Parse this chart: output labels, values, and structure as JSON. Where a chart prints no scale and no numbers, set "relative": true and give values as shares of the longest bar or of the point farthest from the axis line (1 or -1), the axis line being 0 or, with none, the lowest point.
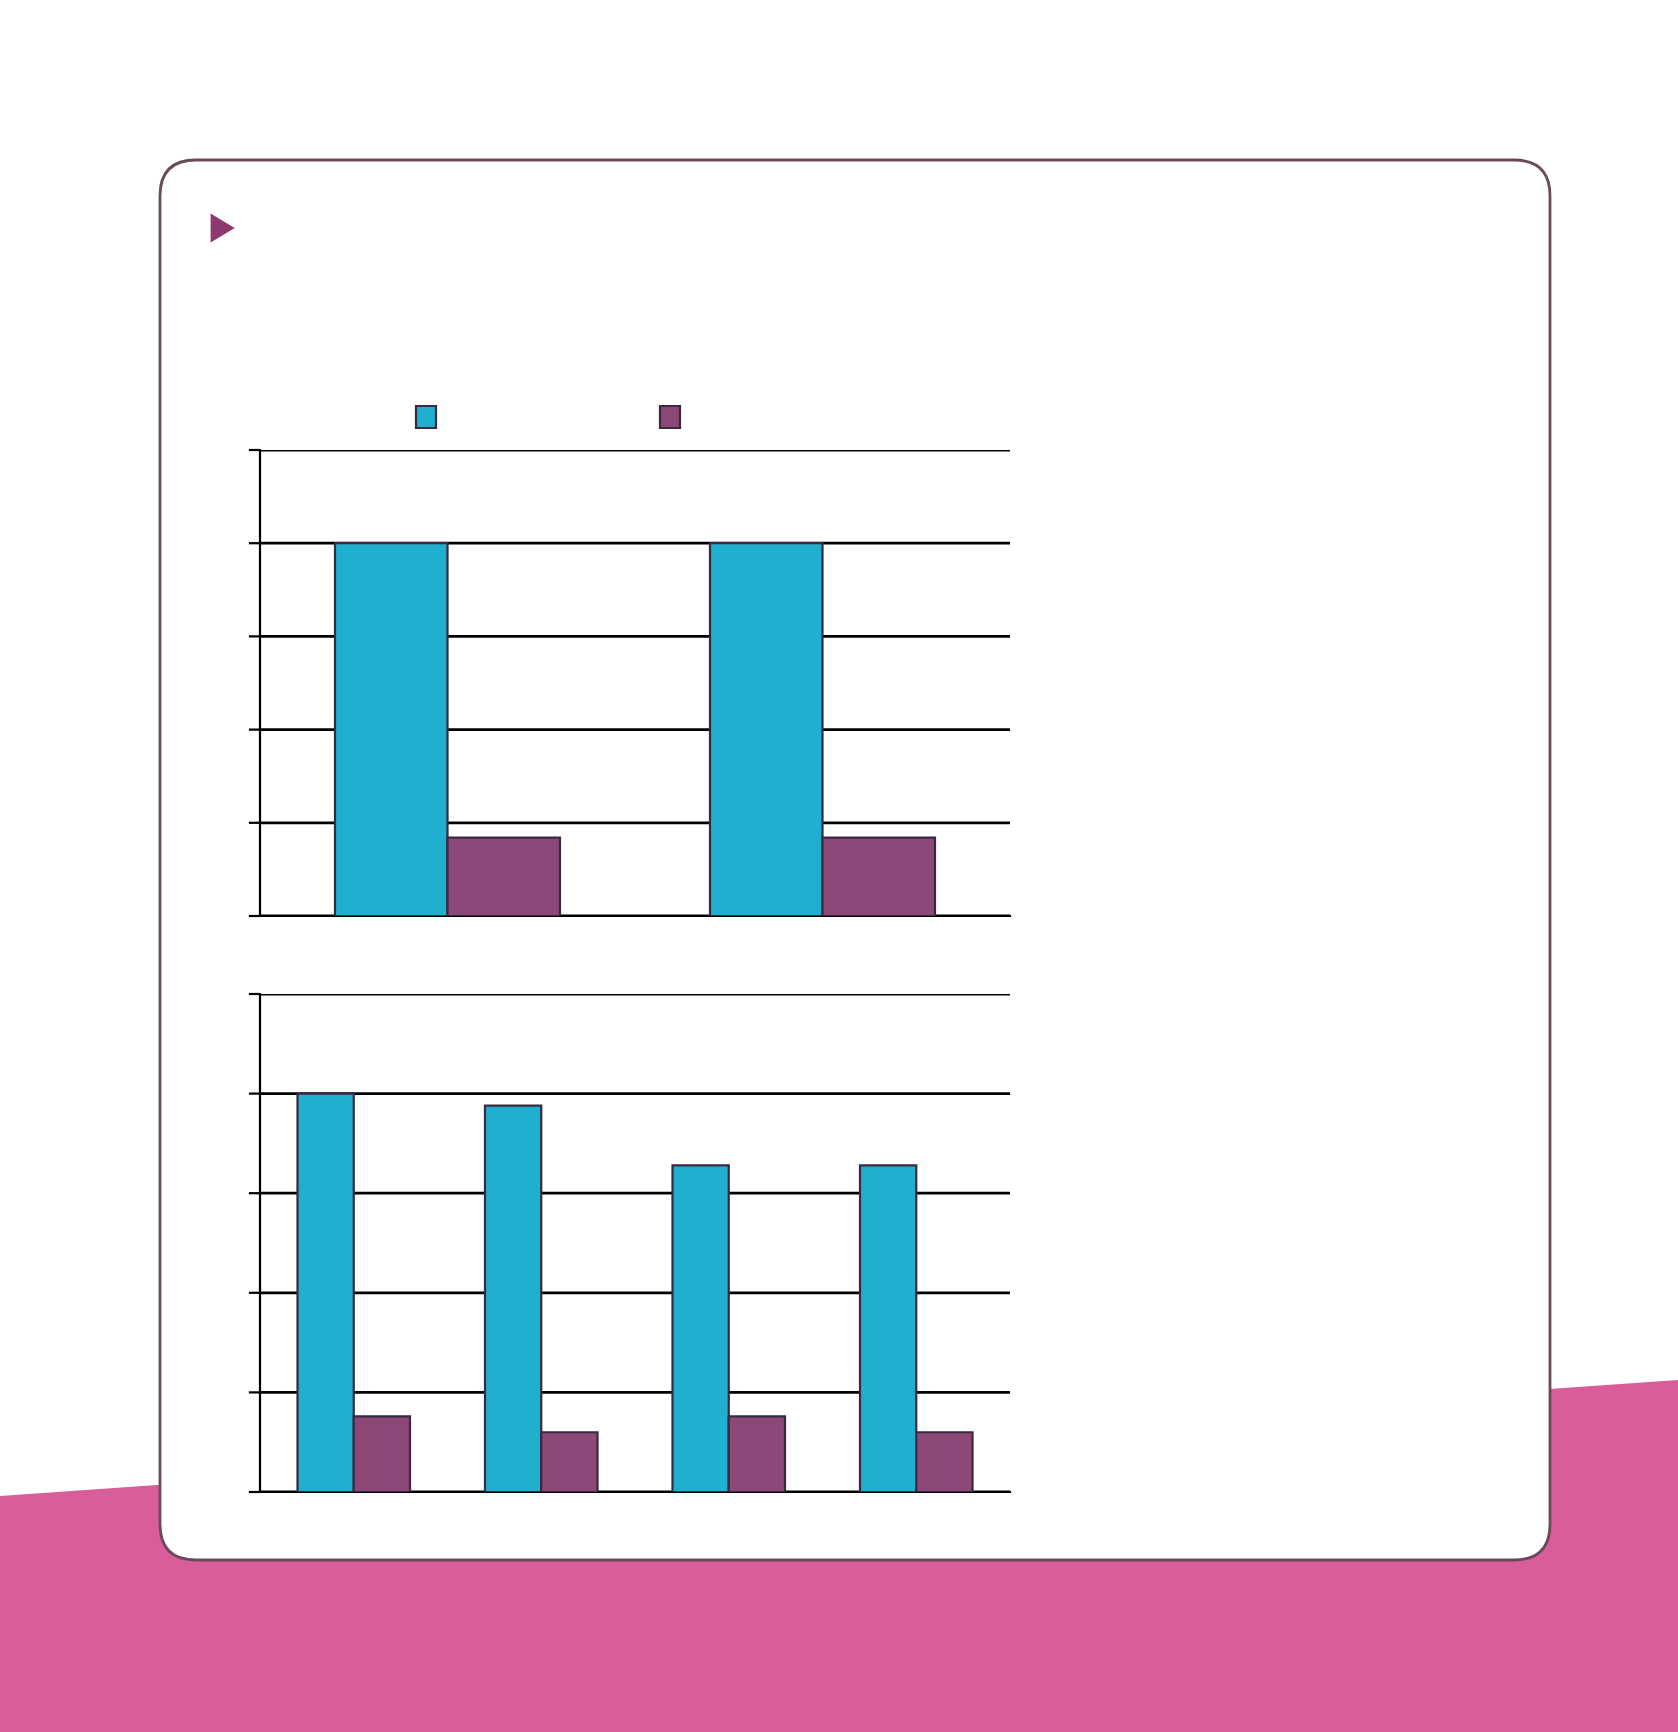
{
  "chart_data": [
    {
      "type": "bar",
      "relative": true,
      "grid": "y",
      "categories": [
        null,
        null
      ],
      "series": [
        {
          "color": "#1fb0cf",
          "values": [
            1,
            1
          ]
        },
        {
          "color": "#8c4876",
          "values": [
            0.21,
            0.21
          ]
        }
      ]
    },
    {
      "type": "bar",
      "relative": true,
      "grid": "y",
      "categories": [
        null,
        null,
        null,
        null
      ],
      "series": [
        {
          "color": "#1fb0cf",
          "values": [
            1,
            0.97,
            0.82,
            0.82
          ]
        },
        {
          "color": "#8c4876",
          "values": [
            0.19,
            0.15,
            0.19,
            0.15
          ]
        }
      ]
    }
  ]
}
